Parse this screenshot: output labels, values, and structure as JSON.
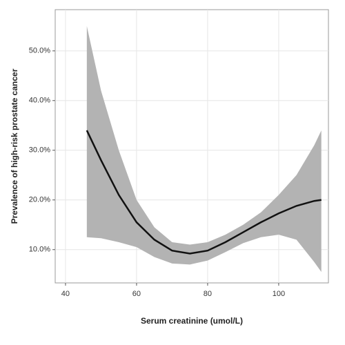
{
  "chart_data": {
    "type": "line",
    "xlabel": "Serum creatinine (umol/L)",
    "ylabel": "Prevalence of high-risk prostate cancer",
    "x": [
      46,
      50,
      55,
      60,
      65,
      70,
      75,
      80,
      85,
      90,
      95,
      100,
      105,
      110,
      112
    ],
    "series": [
      {
        "color": "#111111",
        "band_color": "#b3b3b3",
        "values": [
          34,
          28,
          21,
          15.5,
          12,
          9.8,
          9.2,
          9.8,
          11.5,
          13.5,
          15.5,
          17.3,
          18.8,
          19.8,
          20
        ],
        "upper": [
          55,
          42,
          30,
          20,
          14.5,
          11.5,
          11,
          11.5,
          13,
          15,
          17.5,
          21,
          25,
          31,
          34
        ],
        "lower": [
          12.5,
          12.3,
          11.5,
          10.5,
          8.5,
          7.2,
          7,
          7.8,
          9.5,
          11.3,
          12.5,
          13,
          12,
          7.5,
          5.5
        ]
      }
    ],
    "xlim": [
      37.1,
      114
    ],
    "xticks": [
      40,
      60,
      80,
      100
    ],
    "ylim": [
      3.3,
      58.3
    ],
    "yticks": [
      {
        "value": 10,
        "label": "10.0%"
      },
      {
        "value": 20,
        "label": "20.0%"
      },
      {
        "value": 30,
        "label": "30.0%"
      },
      {
        "value": 40,
        "label": "40.0%"
      },
      {
        "value": 50,
        "label": "50.0%"
      }
    ],
    "grid": true
  }
}
